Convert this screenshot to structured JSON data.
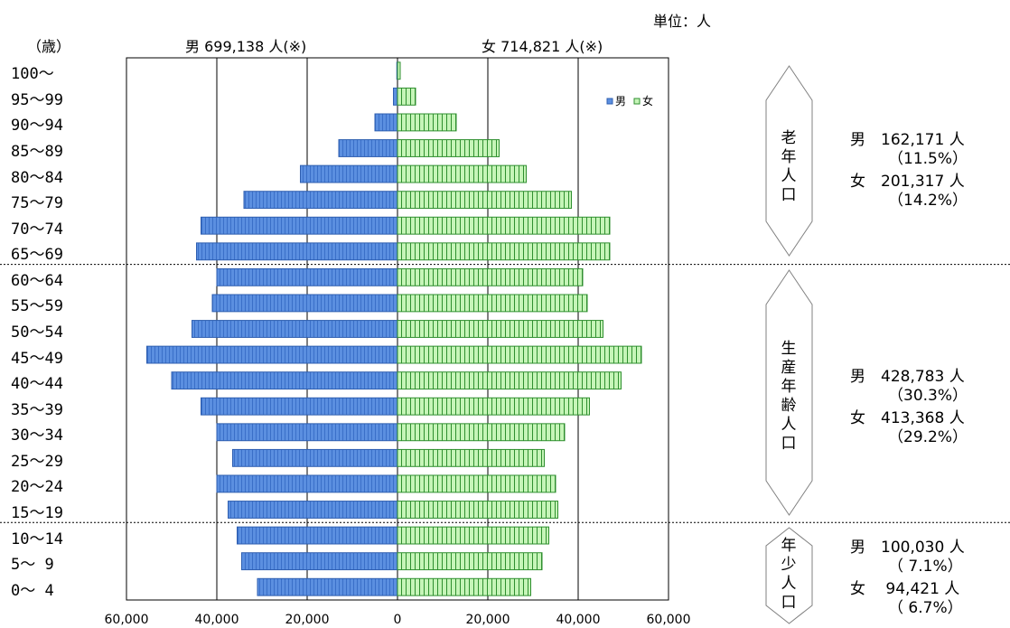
{
  "header": {
    "unit": "単位：人",
    "age_unit": "（歳）",
    "male_total": "男 699,138 人(※)",
    "female_total": "女 714,821 人(※)"
  },
  "colors": {
    "male_fill": "#5b8fe0",
    "male_stroke": "#2f5fb0",
    "female_fill": "#c6f5b8",
    "female_stroke": "#2f8f2f"
  },
  "chart_data": {
    "type": "bar",
    "orientation": "horizontal-population-pyramid",
    "categories": [
      "0～ 4",
      "5～ 9",
      "10～14",
      "15～19",
      "20～24",
      "25～29",
      "30～34",
      "35～39",
      "40～44",
      "45～49",
      "50～54",
      "55～59",
      "60～64",
      "65～69",
      "70～74",
      "75～79",
      "80～84",
      "85～89",
      "90～94",
      "95～99",
      "100～"
    ],
    "series": [
      {
        "name": "男",
        "side": "left",
        "values": [
          31000,
          34500,
          35500,
          37500,
          40000,
          36500,
          40000,
          43500,
          50000,
          55500,
          45500,
          41000,
          40000,
          44500,
          43500,
          34000,
          21500,
          13000,
          5000,
          900,
          150
        ]
      },
      {
        "name": "女",
        "side": "right",
        "values": [
          29500,
          32000,
          33500,
          35500,
          35000,
          32500,
          37000,
          42500,
          49500,
          54000,
          45500,
          42000,
          41000,
          47000,
          47000,
          38500,
          28500,
          22500,
          13000,
          4000,
          600
        ]
      }
    ],
    "xlim": [
      -60000,
      60000
    ],
    "x_tick_labels": [
      "60,000",
      "40,000",
      "20,000",
      "0",
      "20,000",
      "40,000",
      "60,000"
    ],
    "legend": [
      "男",
      "女"
    ],
    "legend_position": "top-right",
    "grid": true
  },
  "groups": {
    "elderly": {
      "label": "老年人口",
      "male": "男　162,171 人",
      "male_pct": "（11.5%）",
      "female": "女　201,317 人",
      "female_pct": "（14.2%）"
    },
    "working": {
      "label": "生産年齢人口",
      "male": "男　428,783 人",
      "male_pct": "（30.3%）",
      "female": "女　413,368 人",
      "female_pct": "（29.2%）"
    },
    "young": {
      "label": "年少人口",
      "male": "男　100,030 人",
      "male_pct": "（ 7.1%）",
      "female": "女　 94,421 人",
      "female_pct": "（ 6.7%）"
    }
  }
}
